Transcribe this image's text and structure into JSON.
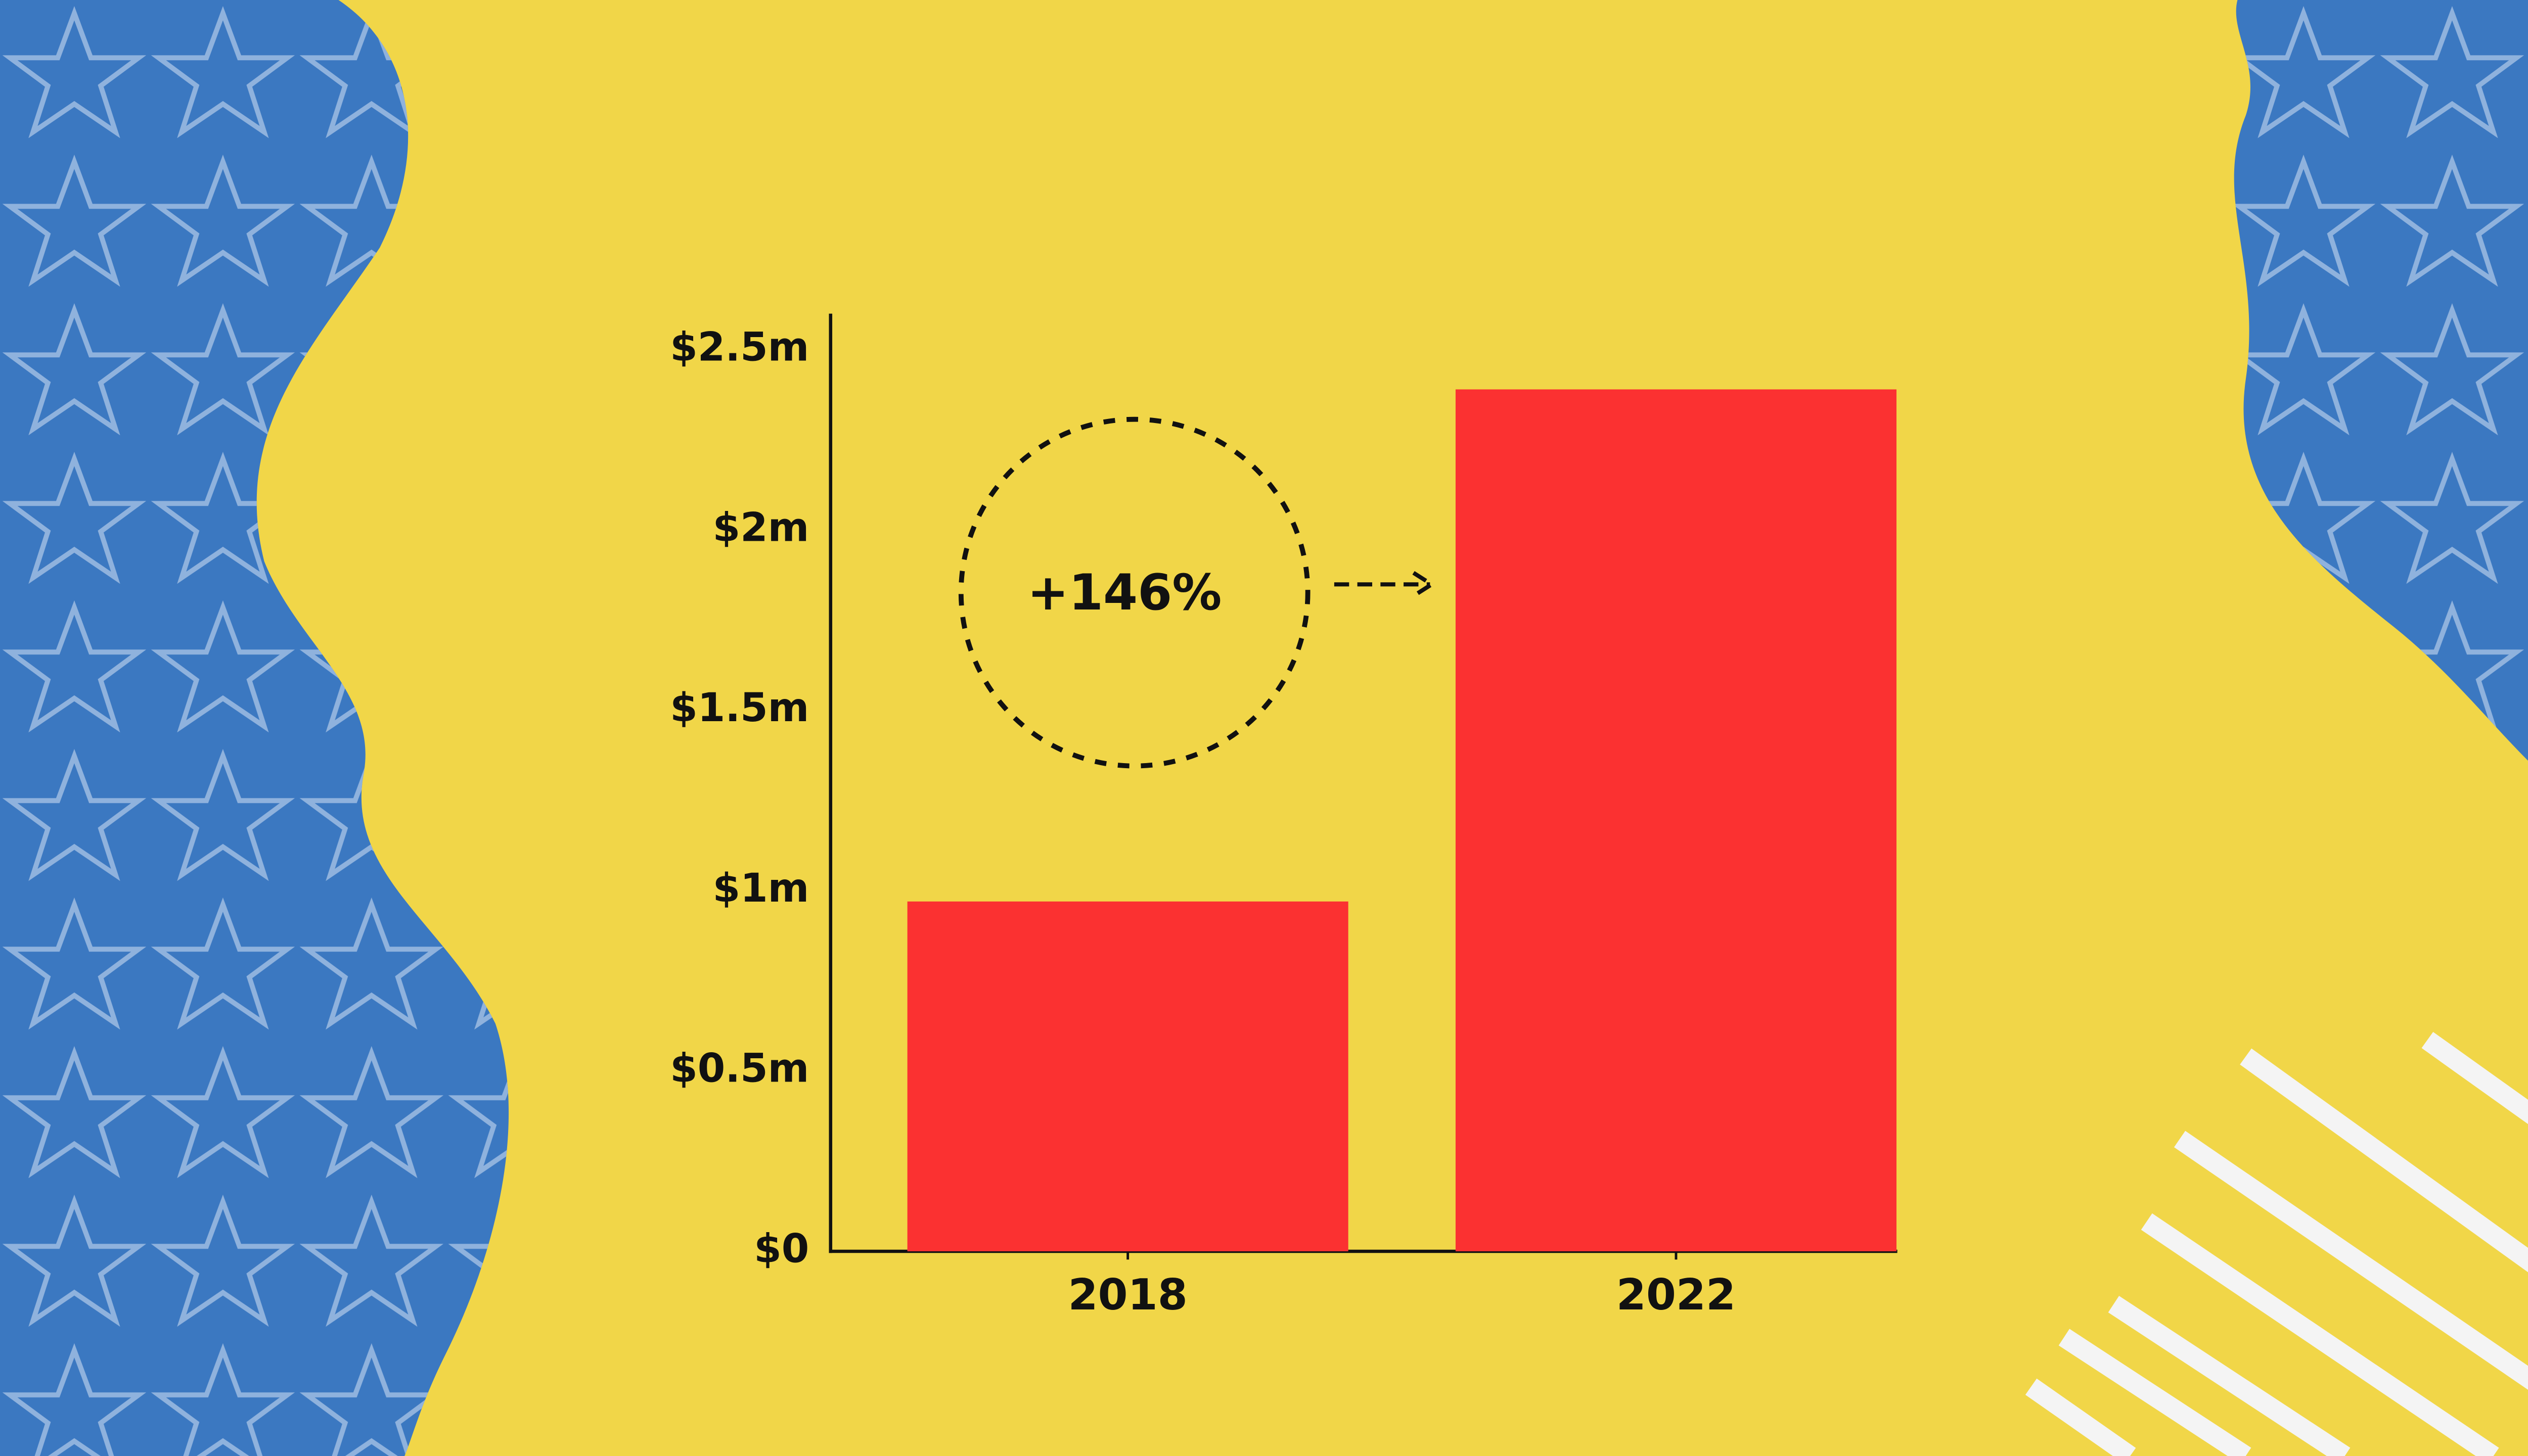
{
  "chart_data": {
    "type": "bar",
    "categories": [
      "2018",
      "2022"
    ],
    "values": [
      0.97,
      2.39
    ],
    "color": "#fb3131",
    "ylim": [
      0,
      2.6
    ],
    "yticks": [
      {
        "value": 0,
        "label": "$0"
      },
      {
        "value": 0.5,
        "label": "$0.5m"
      },
      {
        "value": 1,
        "label": "$1m"
      },
      {
        "value": 1.5,
        "label": "$1.5m"
      },
      {
        "value": 2,
        "label": "$2m"
      },
      {
        "value": 2.5,
        "label": "$2.5m"
      }
    ],
    "annotation": "+146%",
    "grid": false
  }
}
